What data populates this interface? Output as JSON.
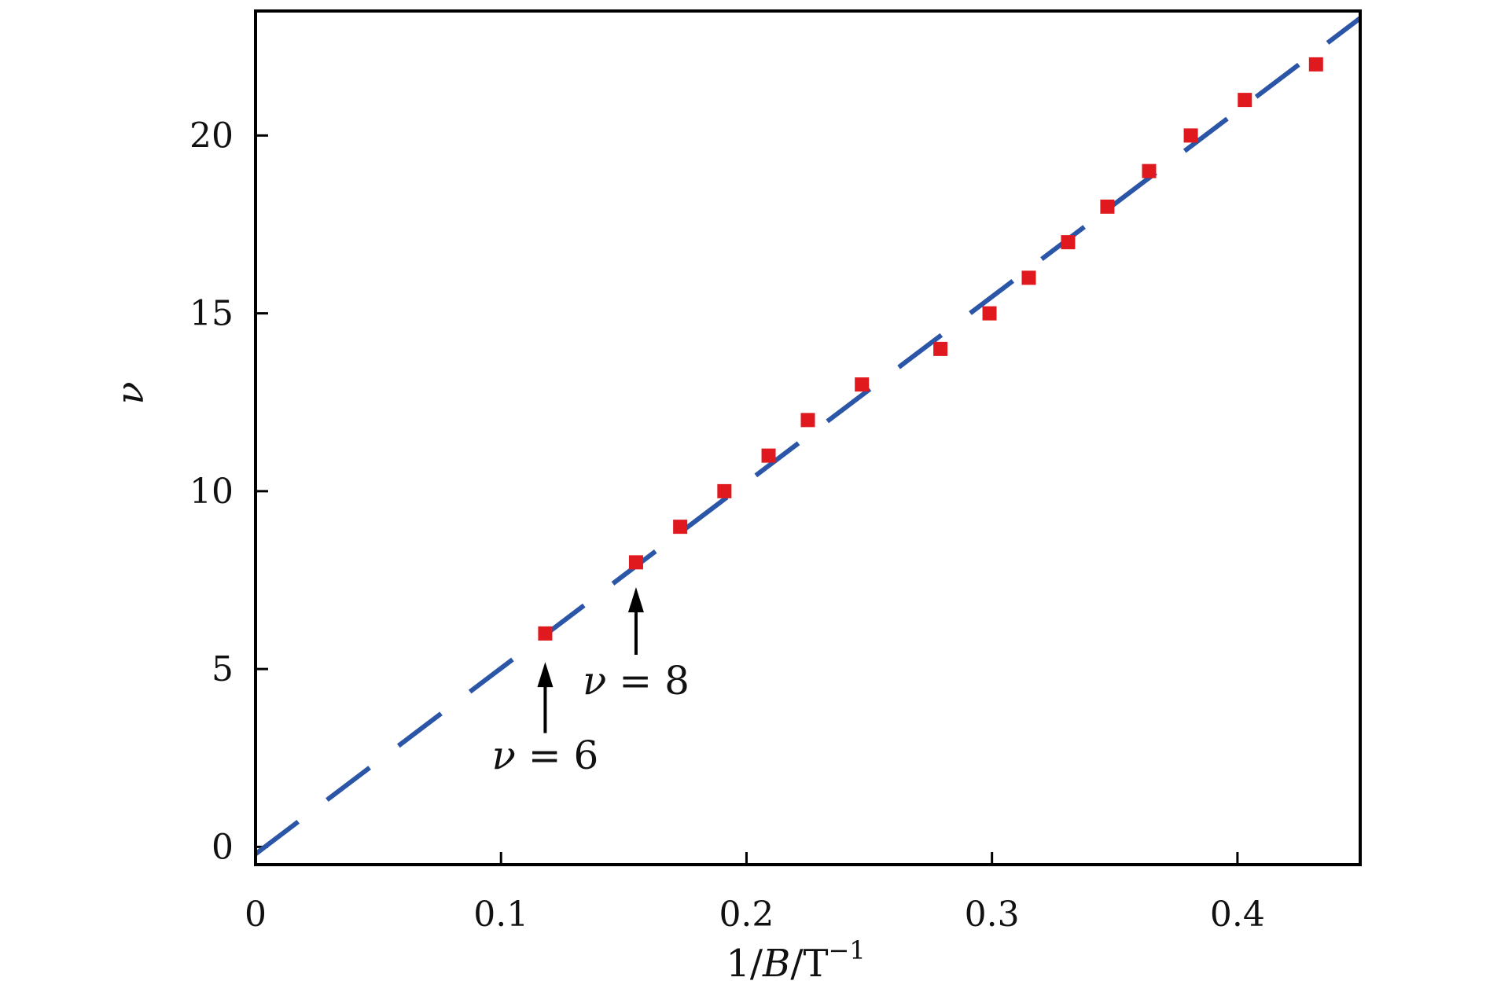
{
  "chart_data": {
    "type": "scatter",
    "title": "",
    "xlim": [
      0,
      0.45
    ],
    "ylim": [
      -0.5,
      23.5
    ],
    "grid": false,
    "x_ticks": [
      {
        "value": 0,
        "label": "0"
      },
      {
        "value": 0.1,
        "label": "0.1"
      },
      {
        "value": 0.2,
        "label": "0.2"
      },
      {
        "value": 0.3,
        "label": "0.3"
      },
      {
        "value": 0.4,
        "label": "0.4"
      }
    ],
    "y_ticks": [
      {
        "value": 0,
        "label": "0"
      },
      {
        "value": 5,
        "label": "5"
      },
      {
        "value": 10,
        "label": "10"
      },
      {
        "value": 15,
        "label": "15"
      },
      {
        "value": 20,
        "label": "20"
      }
    ],
    "xlabel": {
      "main": "1/",
      "var": "B",
      "sep": "/T",
      "sup": "−1"
    },
    "ylabel": "ν",
    "series": [
      {
        "kind": "points",
        "marker": "square",
        "color": "#e0191f",
        "points": [
          {
            "x": 0.118,
            "y": 6
          },
          {
            "x": 0.155,
            "y": 8
          },
          {
            "x": 0.173,
            "y": 9
          },
          {
            "x": 0.191,
            "y": 10
          },
          {
            "x": 0.209,
            "y": 11
          },
          {
            "x": 0.225,
            "y": 12
          },
          {
            "x": 0.247,
            "y": 13
          },
          {
            "x": 0.279,
            "y": 14
          },
          {
            "x": 0.299,
            "y": 15
          },
          {
            "x": 0.315,
            "y": 16
          },
          {
            "x": 0.331,
            "y": 17
          },
          {
            "x": 0.347,
            "y": 18
          },
          {
            "x": 0.364,
            "y": 19
          },
          {
            "x": 0.381,
            "y": 20
          },
          {
            "x": 0.403,
            "y": 21
          },
          {
            "x": 0.432,
            "y": 22
          }
        ]
      },
      {
        "kind": "fit-line",
        "style": "dashed",
        "color": "#2b55a6",
        "from": {
          "x": 0.0,
          "y": -0.2
        },
        "to": {
          "x": 0.45,
          "y": 23.3
        }
      }
    ],
    "annotations": [
      {
        "id": "nu6",
        "prefix": "ν",
        "text": " = 6",
        "target": {
          "x": 0.118,
          "y": 6
        },
        "arrow_from_y": 3.2,
        "arrow_to_y": 5.2,
        "label_y": 2.2
      },
      {
        "id": "nu8",
        "prefix": "ν",
        "text": " = 8",
        "target": {
          "x": 0.155,
          "y": 8
        },
        "arrow_from_y": 5.4,
        "arrow_to_y": 7.3,
        "label_y": 4.3
      }
    ]
  }
}
